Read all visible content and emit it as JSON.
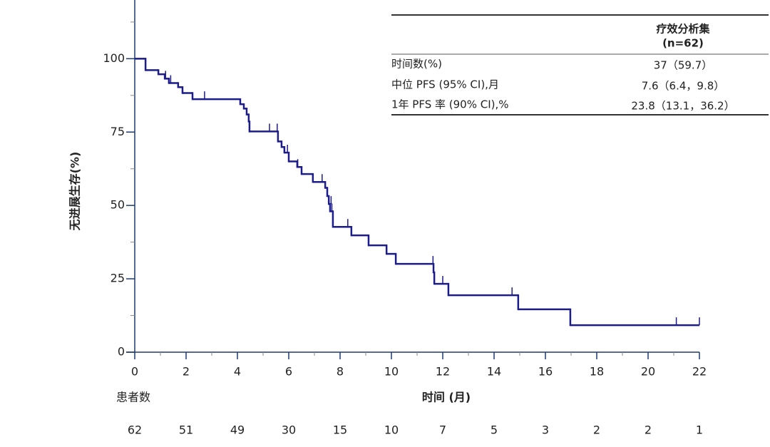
{
  "chart_data": {
    "type": "km",
    "ylabel": "无进展生存(%)",
    "xlabel": "时间 (月)",
    "color": "#1c1c8a",
    "xlim": [
      0,
      22
    ],
    "ylim": [
      0,
      120
    ],
    "xticks": [
      0,
      2,
      4,
      6,
      8,
      10,
      12,
      14,
      16,
      18,
      20,
      22
    ],
    "xminorticks": [
      1,
      3,
      5,
      7,
      9,
      11,
      13,
      15,
      17,
      19,
      21
    ],
    "yticks": [
      0,
      25,
      50,
      75,
      100
    ],
    "yminorticks": [
      12.5,
      37.5,
      62.5,
      87.5,
      112.5
    ],
    "x": [
      0,
      0.42,
      0.92,
      1.17,
      1.33,
      1.69,
      1.86,
      2.25,
      4.11,
      4.25,
      4.36,
      4.44,
      4.47,
      5.58,
      5.72,
      5.83,
      6.0,
      6.33,
      6.5,
      6.94,
      7.42,
      7.5,
      7.56,
      7.61,
      7.72,
      8.44,
      9.11,
      9.81,
      10.17,
      11.64,
      11.67,
      12.22,
      14.94,
      16.97
    ],
    "values": [
      100,
      96.1,
      94.7,
      93.2,
      91.7,
      90.3,
      88.3,
      86.2,
      84.5,
      83,
      81,
      78.6,
      75.2,
      71.8,
      69.9,
      68,
      65,
      63.1,
      60.7,
      58,
      56,
      53.2,
      50.5,
      48,
      42.7,
      39.8,
      36.4,
      33.5,
      30.1,
      27.2,
      23.3,
      19.4,
      14.6,
      9.2
    ],
    "censored": {
      "x": [
        1.2,
        1.4,
        2.72,
        5.25,
        5.55,
        5.95,
        6.35,
        7.3,
        7.65,
        7.68,
        8.3,
        11.62,
        12.0,
        14.7,
        21.1,
        22
      ],
      "y": [
        93.2,
        91.7,
        86.2,
        75.2,
        75.2,
        68,
        63.1,
        58,
        50.5,
        48,
        42.7,
        30.1,
        23.3,
        19.4,
        9.2,
        9.2
      ]
    },
    "at_risk": {
      "label": "患者数",
      "values": [
        62,
        51,
        49,
        30,
        15,
        10,
        7,
        5,
        3,
        2,
        2,
        1
      ]
    }
  },
  "table": {
    "header": [
      "疗效分析集",
      "(n=62)"
    ],
    "rows": [
      [
        "时间数(%)",
        "37（59.7）"
      ],
      [
        "中位 PFS (95% CI),月",
        "7.6（6.4，9.8）"
      ],
      [
        "1年 PFS 率 (90% CI),%",
        "23.8（13.1，36.2）"
      ]
    ]
  }
}
